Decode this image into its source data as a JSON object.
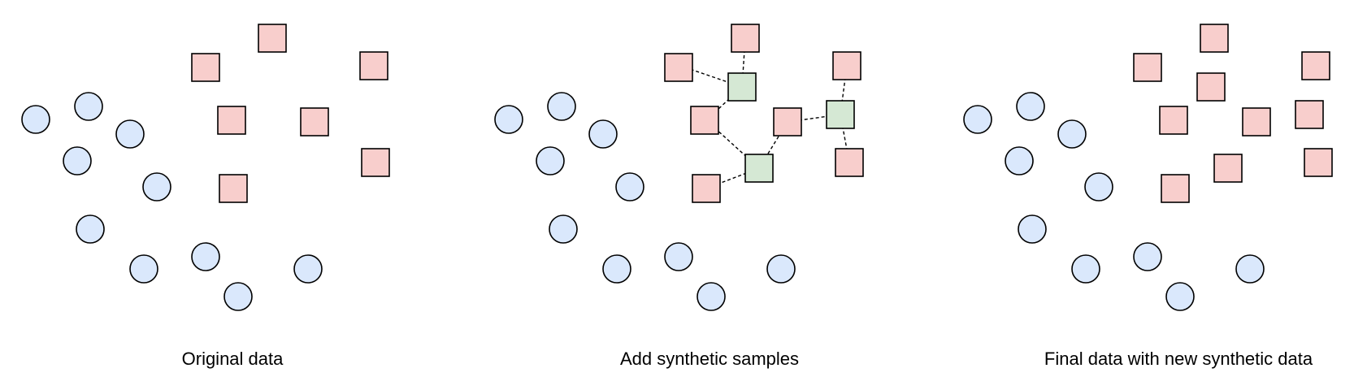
{
  "colors": {
    "background": "#ffffff",
    "majority_fill": "#dae8fc",
    "minority_fill": "#f8cecc",
    "synthetic_fill": "#d5e8d4",
    "stroke": "#000000"
  },
  "panels": [
    {
      "caption": "Original data",
      "legend_shapes": {
        "majority": "circle",
        "minority": "square"
      }
    },
    {
      "caption": "Add synthetic samples",
      "legend_shapes": {
        "majority": "circle",
        "minority": "square",
        "synthetic": "square"
      }
    },
    {
      "caption": "Final data with new synthetic data",
      "legend_shapes": {
        "majority": "circle",
        "minority": "square"
      }
    }
  ]
}
